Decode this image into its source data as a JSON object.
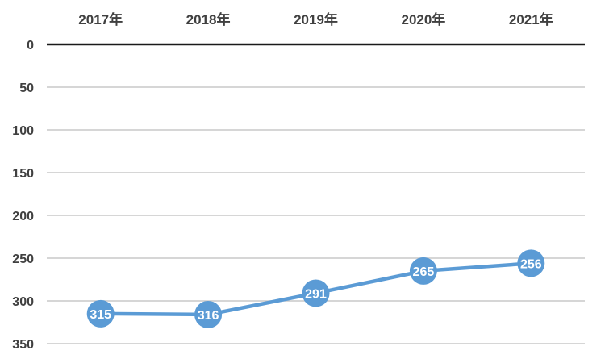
{
  "chart_data": {
    "type": "line",
    "categories": [
      "2017年",
      "2018年",
      "2019年",
      "2020年",
      "2021年"
    ],
    "values": [
      315,
      316,
      291,
      265,
      256
    ],
    "data_labels": [
      "315",
      "316",
      "291",
      "265",
      "256"
    ],
    "y_ticks": [
      "0",
      "50",
      "100",
      "150",
      "200",
      "250",
      "300",
      "350"
    ],
    "y_tick_values": [
      0,
      50,
      100,
      150,
      200,
      250,
      300,
      350
    ],
    "ylim": [
      0,
      350
    ],
    "y_reversed": true,
    "x_axis_position": "top",
    "grid": true,
    "colors": {
      "line": "#5b9bd5",
      "marker": "#5b9bd5",
      "grid": "#c8c8c8",
      "axis": "#1a1a1a",
      "text": "#404040",
      "label_text": "#ffffff"
    }
  }
}
